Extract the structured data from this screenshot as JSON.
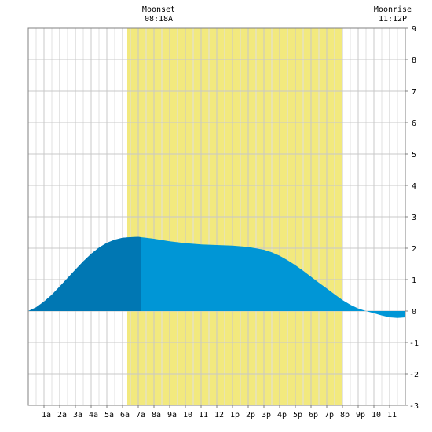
{
  "chart_data": {
    "type": "area",
    "title": "",
    "xlabel": "",
    "ylabel": "",
    "x_range_hours": [
      0,
      24
    ],
    "ylim": [
      -3,
      9
    ],
    "grid": true,
    "x_ticks": [
      {
        "hour": 1,
        "label": "1a"
      },
      {
        "hour": 2,
        "label": "2a"
      },
      {
        "hour": 3,
        "label": "3a"
      },
      {
        "hour": 4,
        "label": "4a"
      },
      {
        "hour": 5,
        "label": "5a"
      },
      {
        "hour": 6,
        "label": "6a"
      },
      {
        "hour": 7,
        "label": "7a"
      },
      {
        "hour": 8,
        "label": "8a"
      },
      {
        "hour": 9,
        "label": "9a"
      },
      {
        "hour": 10,
        "label": "10"
      },
      {
        "hour": 11,
        "label": "11"
      },
      {
        "hour": 12,
        "label": "12"
      },
      {
        "hour": 13,
        "label": "1p"
      },
      {
        "hour": 14,
        "label": "2p"
      },
      {
        "hour": 15,
        "label": "3p"
      },
      {
        "hour": 16,
        "label": "4p"
      },
      {
        "hour": 17,
        "label": "5p"
      },
      {
        "hour": 18,
        "label": "6p"
      },
      {
        "hour": 19,
        "label": "7p"
      },
      {
        "hour": 20,
        "label": "8p"
      },
      {
        "hour": 21,
        "label": "9p"
      },
      {
        "hour": 22,
        "label": "10"
      },
      {
        "hour": 23,
        "label": "11"
      }
    ],
    "y_ticks": [
      "-3",
      "-2",
      "-1",
      "0",
      "1",
      "2",
      "3",
      "4",
      "5",
      "6",
      "7",
      "8",
      "9"
    ],
    "daylight": {
      "start_hour": 6.3,
      "end_hour": 19.95,
      "color": "#f2e97e"
    },
    "moon_highlight": {
      "start_hour": 0,
      "end_hour": 7.15,
      "color": "#0077b3"
    },
    "tide_color": "#0096d6",
    "series": [
      {
        "x": [
          0,
          0.5,
          1,
          1.5,
          2,
          2.5,
          3,
          3.5,
          4,
          4.5,
          5,
          5.5,
          6,
          6.5,
          7,
          7.5,
          8,
          9,
          10,
          11,
          12,
          13,
          14,
          15,
          15.5,
          16,
          16.5,
          17,
          17.5,
          18,
          18.5,
          19,
          19.5,
          20,
          20.5,
          21,
          21.5,
          22,
          22.5,
          23,
          23.5,
          24
        ],
        "y": [
          0.0,
          0.12,
          0.3,
          0.52,
          0.78,
          1.05,
          1.32,
          1.58,
          1.82,
          2.02,
          2.17,
          2.27,
          2.33,
          2.35,
          2.36,
          2.33,
          2.3,
          2.22,
          2.16,
          2.12,
          2.1,
          2.08,
          2.04,
          1.95,
          1.87,
          1.76,
          1.62,
          1.46,
          1.28,
          1.09,
          0.9,
          0.72,
          0.53,
          0.35,
          0.2,
          0.08,
          0.0,
          -0.07,
          -0.14,
          -0.2,
          -0.22,
          -0.2
        ]
      }
    ],
    "events": [
      {
        "name": "Moonset",
        "time": "08:18A",
        "hour": 8.3
      },
      {
        "name": "Moonrise",
        "time": "11:12P",
        "hour": 23.2
      }
    ]
  }
}
